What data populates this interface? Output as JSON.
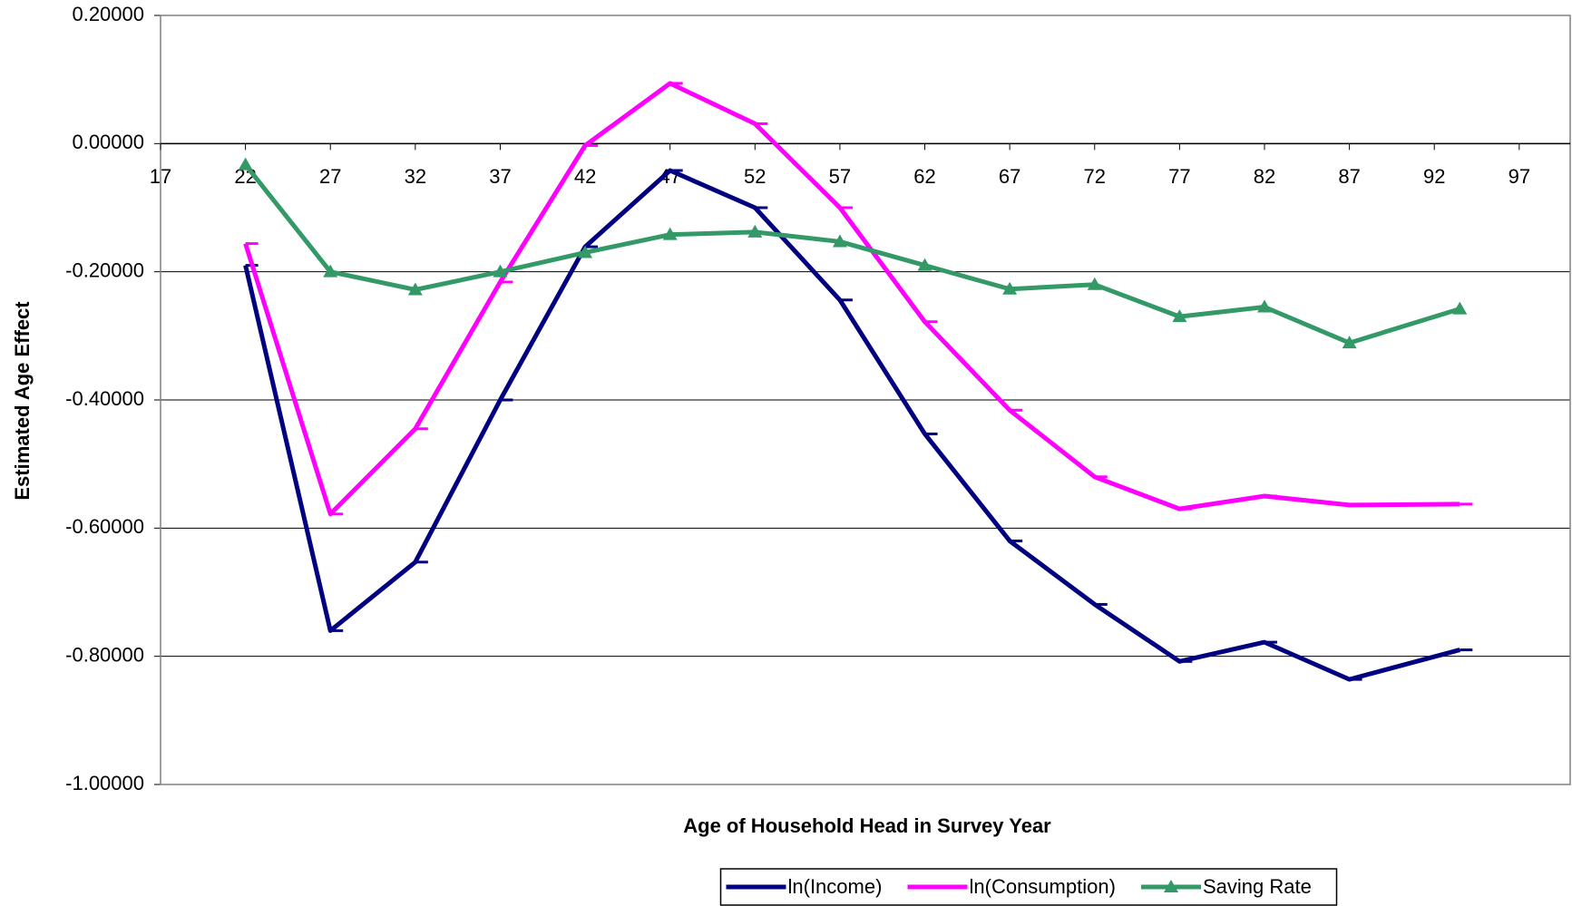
{
  "chart_data": {
    "type": "line",
    "xlabel": "Age of Household Head in Survey Year",
    "ylabel": "Estimated Age Effect",
    "x": [
      22,
      27,
      32,
      37,
      42,
      47,
      52,
      57,
      62,
      67,
      72,
      77,
      82,
      87,
      93.5
    ],
    "series": [
      {
        "name": "ln(Income)",
        "color": "#000080",
        "marker": "dash",
        "values": [
          -0.19,
          -0.76,
          -0.653,
          -0.4,
          -0.161,
          -0.042,
          -0.1,
          -0.244,
          -0.453,
          -0.62,
          -0.719,
          -0.808,
          -0.778,
          -0.836,
          -0.79
        ]
      },
      {
        "name": "ln(Consumption)",
        "color": "#ff00ff",
        "marker": "dash",
        "values": [
          -0.156,
          -0.578,
          -0.445,
          -0.216,
          -0.003,
          0.094,
          0.031,
          -0.1,
          -0.278,
          -0.416,
          -0.52,
          -0.57,
          -0.55,
          -0.564,
          -0.5625
        ]
      },
      {
        "name": "Saving Rate",
        "color": "#339966",
        "marker": "triangle",
        "values": [
          -0.033,
          -0.2,
          -0.228,
          -0.2,
          -0.17,
          -0.142,
          -0.138,
          -0.153,
          -0.19,
          -0.227,
          -0.22,
          -0.27,
          -0.255,
          -0.311,
          -0.258
        ]
      }
    ],
    "xlim": [
      17,
      100
    ],
    "xticks": [
      17,
      22,
      27,
      32,
      37,
      42,
      47,
      52,
      57,
      62,
      67,
      72,
      77,
      82,
      87,
      92,
      97
    ],
    "ylim": [
      -1.0,
      0.2
    ],
    "yticks": [
      {
        "value": -1.0,
        "label": "-1.00000"
      },
      {
        "value": -0.8,
        "label": "-0.80000"
      },
      {
        "value": -0.6,
        "label": "-0.60000"
      },
      {
        "value": -0.4,
        "label": "-0.40000"
      },
      {
        "value": -0.2,
        "label": "-0.20000"
      },
      {
        "value": 0,
        "label": "0.00000"
      },
      {
        "value": 0.2,
        "label": "0.20000"
      }
    ],
    "grid": true,
    "legend": "bottom"
  }
}
